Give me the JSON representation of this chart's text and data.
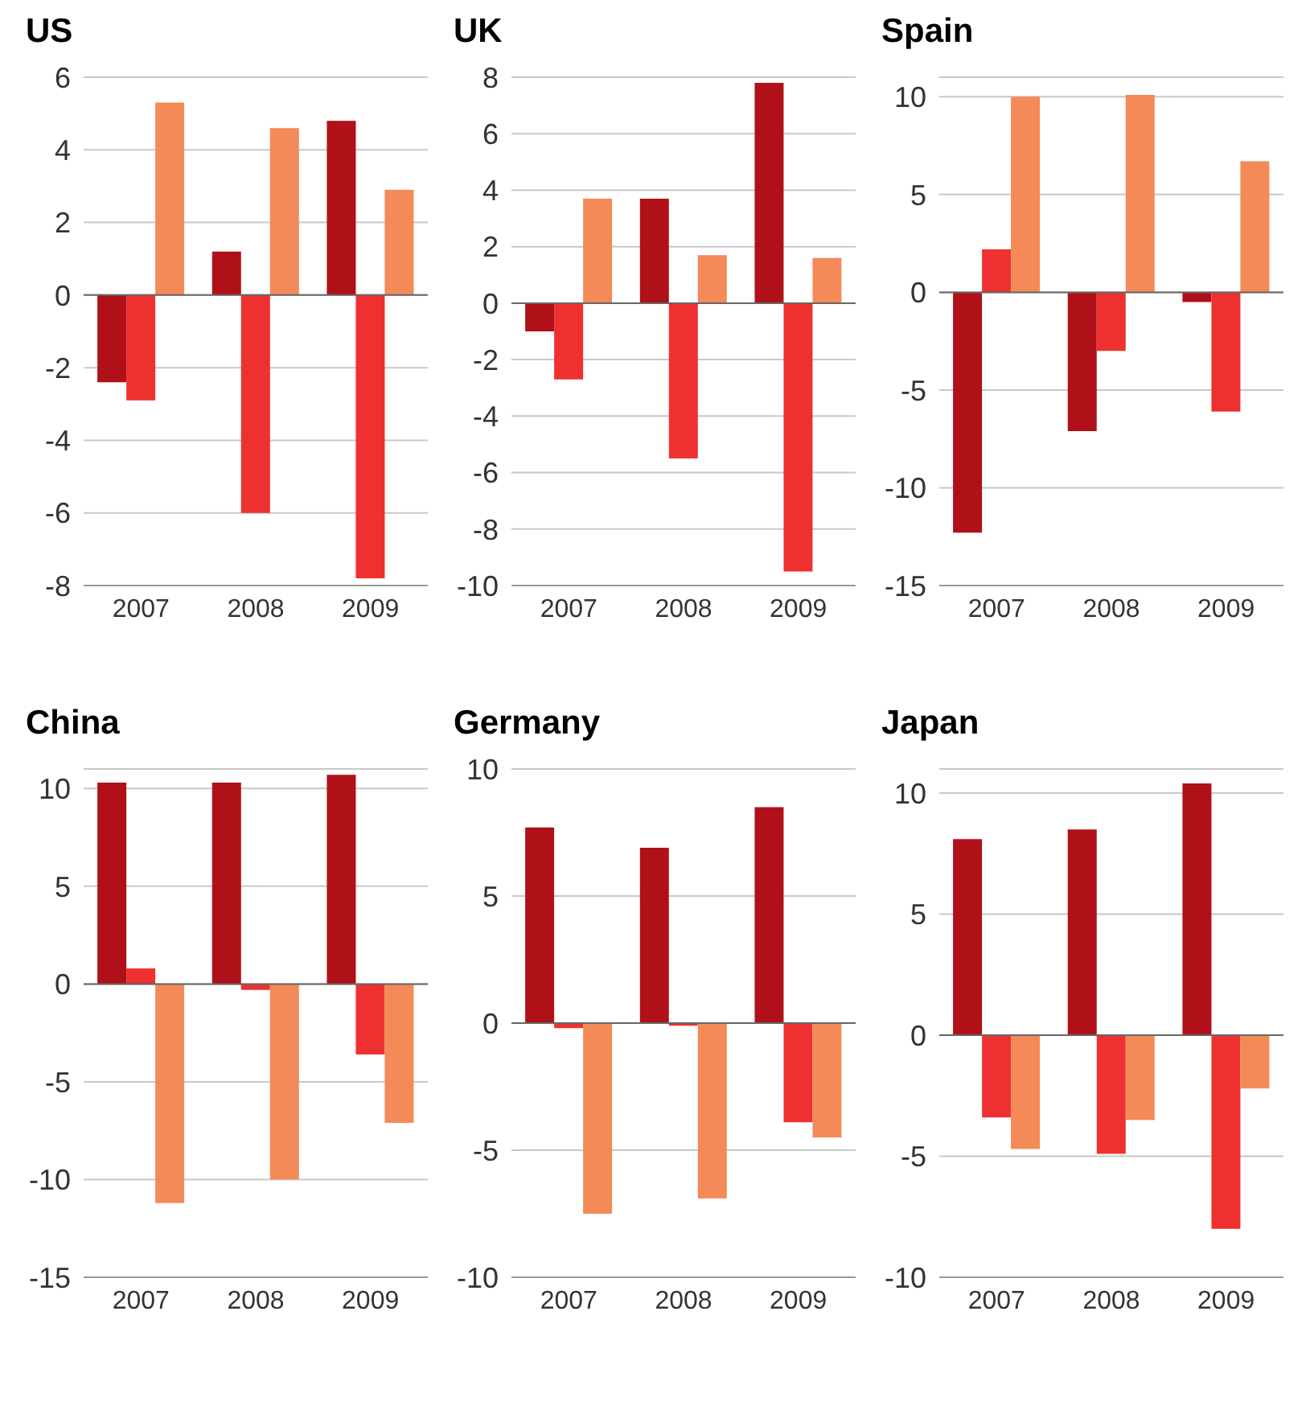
{
  "chart_data": [
    {
      "type": "bar",
      "title": "US",
      "categories": [
        "2007",
        "2008",
        "2009"
      ],
      "series": [
        {
          "color": "#b01018",
          "values": [
            -2.4,
            1.2,
            4.8
          ]
        },
        {
          "color": "#ee3130",
          "values": [
            -2.9,
            -6.0,
            -7.8
          ]
        },
        {
          "color": "#f38a58",
          "values": [
            5.3,
            4.6,
            2.9
          ]
        }
      ],
      "ylim": [
        -8,
        6
      ],
      "yticks": [
        -8,
        -6,
        -4,
        -2,
        0,
        2,
        4,
        6
      ],
      "grid": "y",
      "legend": false
    },
    {
      "type": "bar",
      "title": "UK",
      "categories": [
        "2007",
        "2008",
        "2009"
      ],
      "series": [
        {
          "color": "#b01018",
          "values": [
            -1.0,
            3.7,
            7.8
          ]
        },
        {
          "color": "#ee3130",
          "values": [
            -2.7,
            -5.5,
            -9.5
          ]
        },
        {
          "color": "#f38a58",
          "values": [
            3.7,
            1.7,
            1.6
          ]
        }
      ],
      "ylim": [
        -10,
        8
      ],
      "yticks": [
        -10,
        -8,
        -6,
        -4,
        -2,
        0,
        2,
        4,
        6,
        8
      ],
      "grid": "y",
      "legend": false
    },
    {
      "type": "bar",
      "title": "Spain",
      "categories": [
        "2007",
        "2008",
        "2009"
      ],
      "series": [
        {
          "color": "#b01018",
          "values": [
            -12.3,
            -7.1,
            -0.5
          ]
        },
        {
          "color": "#ee3130",
          "values": [
            2.2,
            -3.0,
            -6.1
          ]
        },
        {
          "color": "#f38a58",
          "values": [
            10.0,
            10.1,
            6.7
          ]
        }
      ],
      "ylim": [
        -15,
        11
      ],
      "yticks": [
        -15,
        -10,
        -5,
        0,
        5,
        10
      ],
      "grid": "y",
      "legend": false
    },
    {
      "type": "bar",
      "title": "China",
      "categories": [
        "2007",
        "2008",
        "2009"
      ],
      "series": [
        {
          "color": "#b01018",
          "values": [
            10.3,
            10.3,
            10.7
          ]
        },
        {
          "color": "#ee3130",
          "values": [
            0.8,
            -0.3,
            -3.6
          ]
        },
        {
          "color": "#f38a58",
          "values": [
            -11.2,
            -10.0,
            -7.1
          ]
        }
      ],
      "ylim": [
        -15,
        11
      ],
      "yticks": [
        -15,
        -10,
        -5,
        0,
        5,
        10
      ],
      "grid": "y",
      "legend": false
    },
    {
      "type": "bar",
      "title": "Germany",
      "categories": [
        "2007",
        "2008",
        "2009"
      ],
      "series": [
        {
          "color": "#b01018",
          "values": [
            7.7,
            6.9,
            8.5
          ]
        },
        {
          "color": "#ee3130",
          "values": [
            -0.2,
            -0.1,
            -3.9
          ]
        },
        {
          "color": "#f38a58",
          "values": [
            -7.5,
            -6.9,
            -4.5
          ]
        }
      ],
      "ylim": [
        -10,
        10
      ],
      "yticks": [
        -10,
        -5,
        0,
        5,
        10
      ],
      "grid": "y",
      "legend": false
    },
    {
      "type": "bar",
      "title": "Japan",
      "categories": [
        "2007",
        "2008",
        "2009"
      ],
      "series": [
        {
          "color": "#b01018",
          "values": [
            8.1,
            8.5,
            10.4
          ]
        },
        {
          "color": "#ee3130",
          "values": [
            -3.4,
            -4.9,
            -8.0
          ]
        },
        {
          "color": "#f38a58",
          "values": [
            -4.7,
            -3.5,
            -2.2
          ]
        }
      ],
      "ylim": [
        -10,
        11
      ],
      "yticks": [
        -10,
        -5,
        0,
        5,
        10
      ],
      "grid": "y",
      "legend": false
    }
  ]
}
